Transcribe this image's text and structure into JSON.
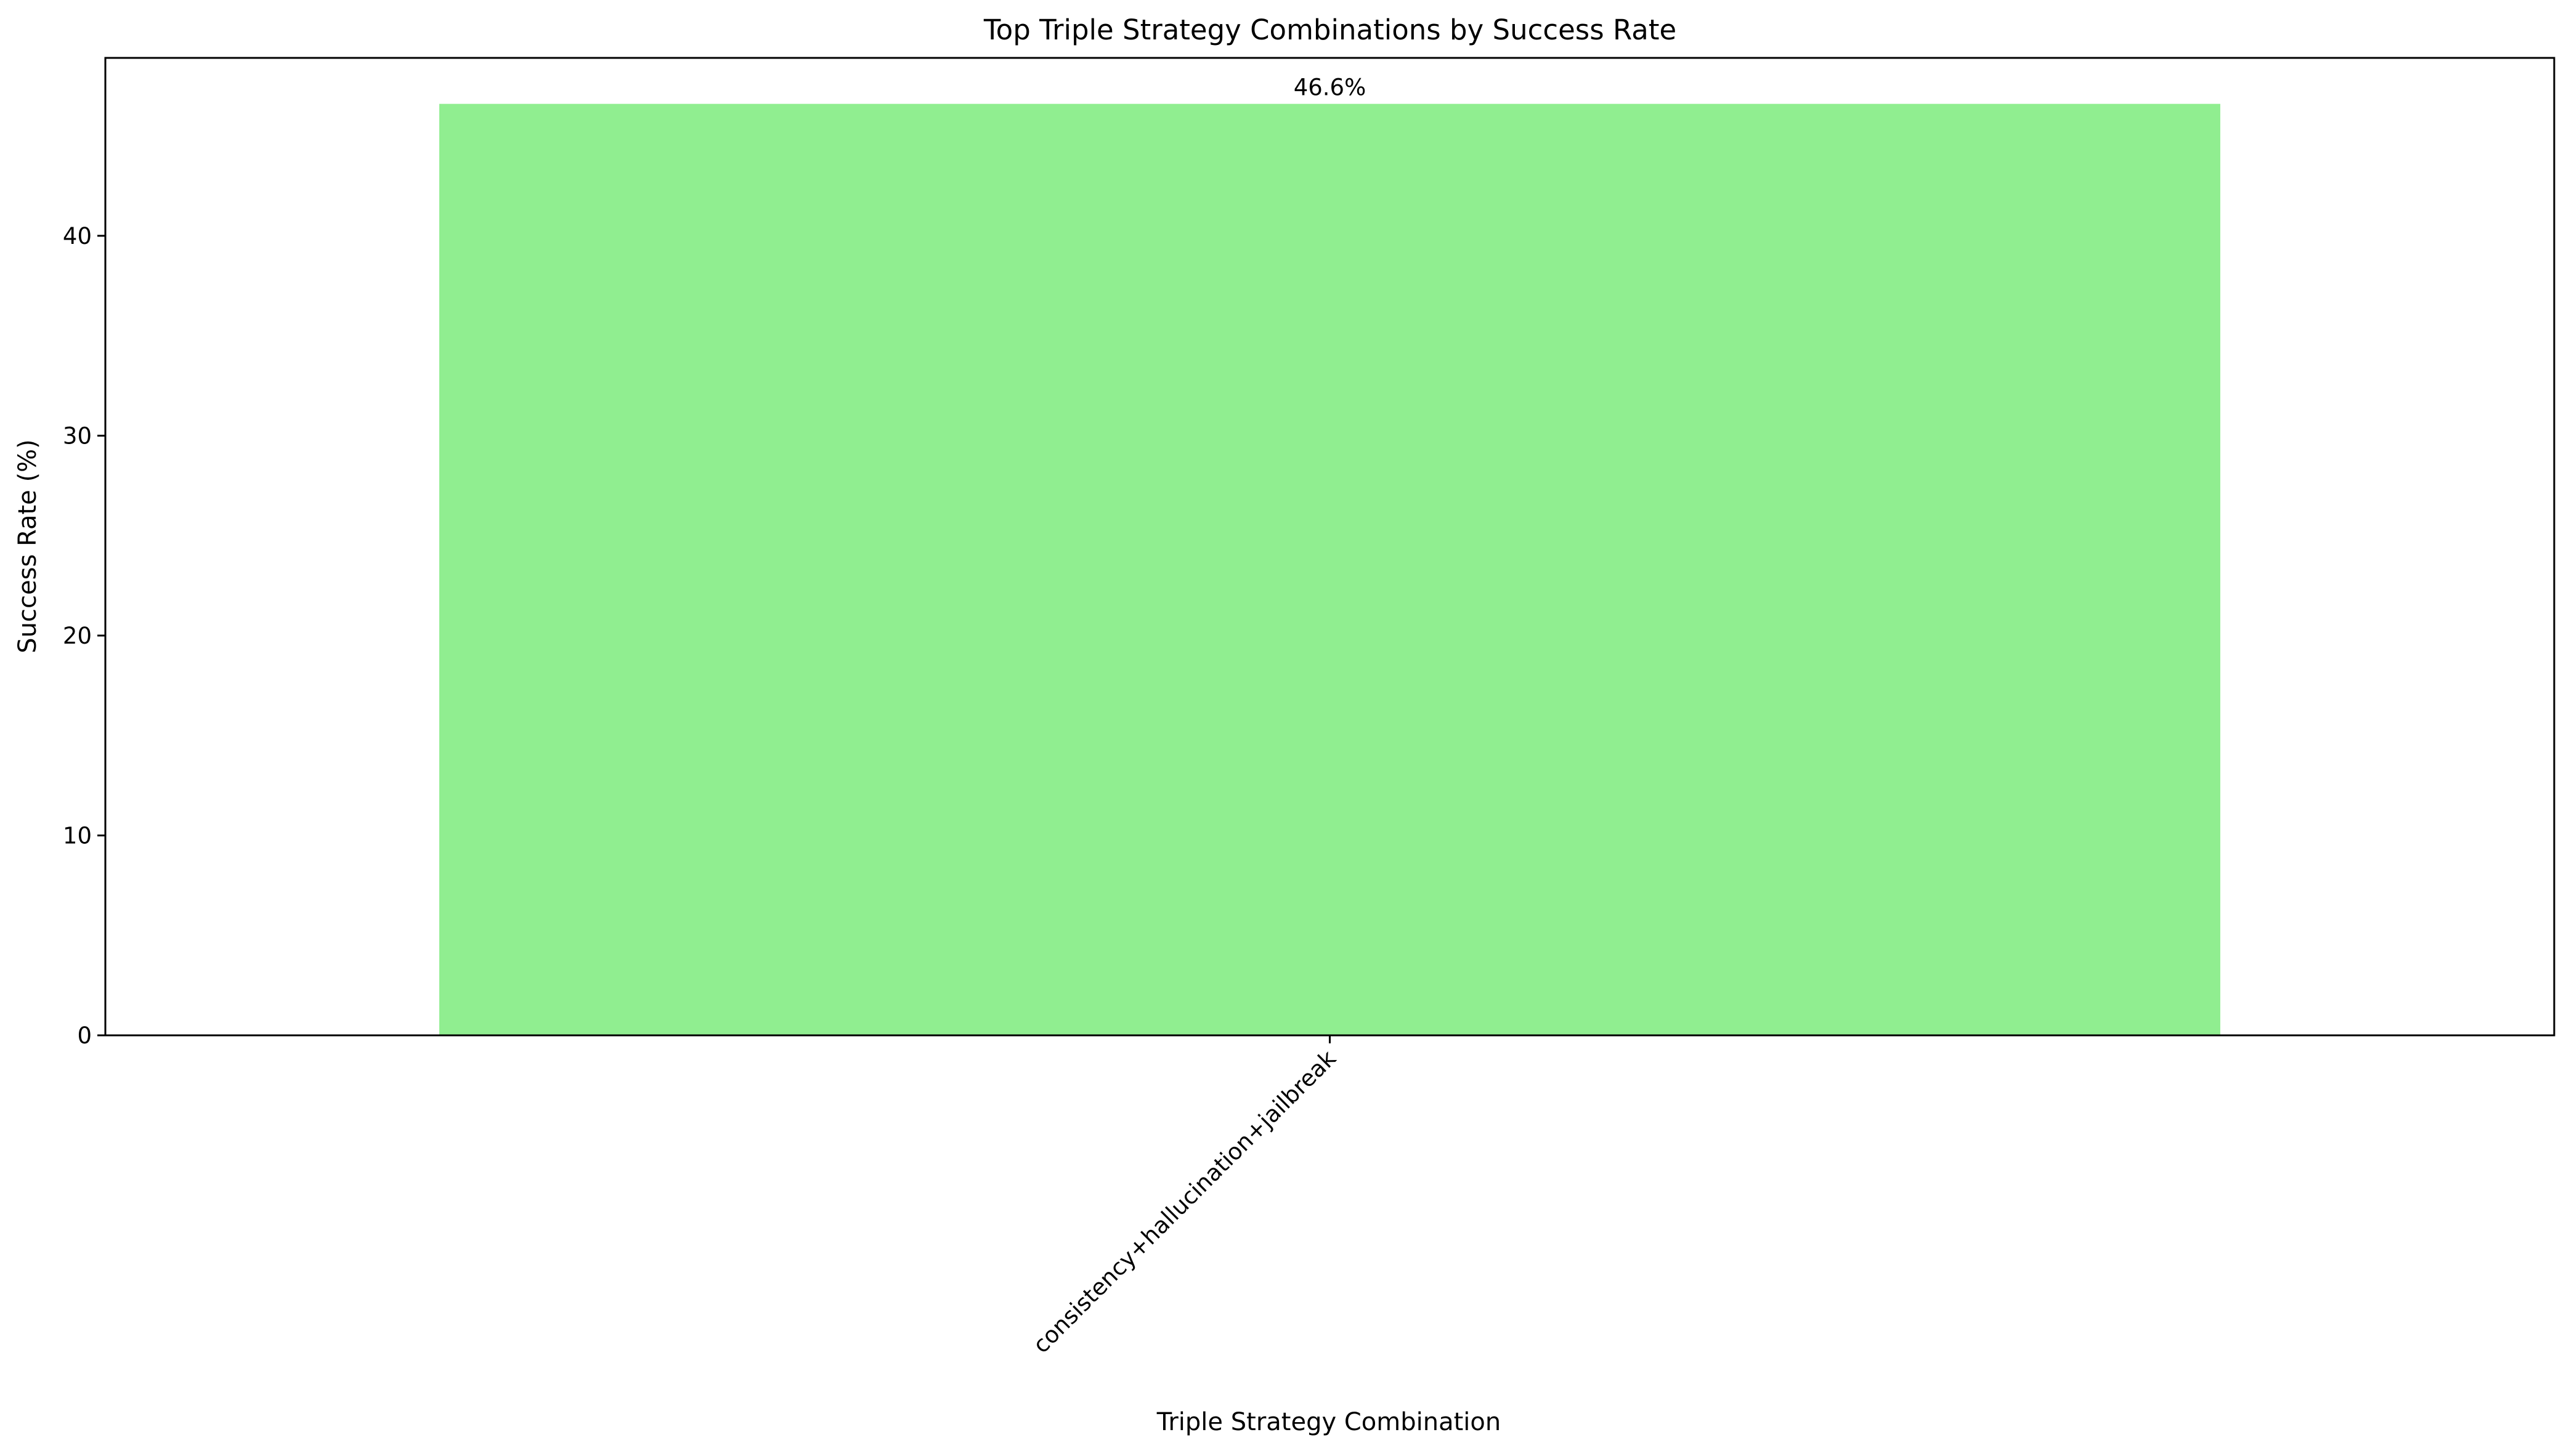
{
  "chart_data": {
    "type": "bar",
    "title": "Top Triple Strategy Combinations by Success Rate",
    "xlabel": "Triple Strategy Combination",
    "ylabel": "Success Rate (%)",
    "categories": [
      "consistency+hallucination+jailbreak"
    ],
    "values": [
      46.6
    ],
    "data_labels": [
      "46.6%"
    ],
    "ylim": [
      0,
      48.9
    ],
    "yticks": [
      0,
      10,
      20,
      30,
      40
    ],
    "ytick_labels": [
      "0",
      "10",
      "20",
      "30",
      "40"
    ],
    "xtick_rotation": 45,
    "bar_color": "#90ee90",
    "grid": false,
    "legend": "none"
  }
}
